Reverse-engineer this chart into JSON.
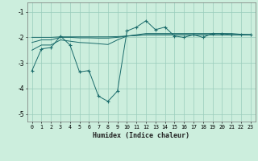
{
  "xlabel": "Humidex (Indice chaleur)",
  "xlim": [
    -0.5,
    23.5
  ],
  "ylim": [
    -5.3,
    -0.65
  ],
  "yticks": [
    -5,
    -4,
    -3,
    -2,
    -1
  ],
  "xticks": [
    0,
    1,
    2,
    3,
    4,
    5,
    6,
    7,
    8,
    9,
    10,
    11,
    12,
    13,
    14,
    15,
    16,
    17,
    18,
    19,
    20,
    21,
    22,
    23
  ],
  "bg_color": "#cceedd",
  "grid_color": "#99ccbb",
  "line_color": "#1a6b6b",
  "series_zigzag": {
    "x": [
      0,
      1,
      2,
      3,
      4,
      5,
      6,
      7,
      8,
      9,
      10,
      11,
      12,
      13,
      14,
      15,
      16,
      17,
      18,
      19,
      20,
      21,
      22,
      23
    ],
    "y": [
      -3.3,
      -2.45,
      -2.4,
      -1.95,
      -2.3,
      -3.35,
      -3.3,
      -4.3,
      -4.5,
      -4.1,
      -1.75,
      -1.6,
      -1.35,
      -1.7,
      -1.6,
      -1.95,
      -2.0,
      -1.9,
      -2.0,
      -1.85,
      -1.85,
      -1.9,
      -1.9,
      -1.9
    ]
  },
  "series_smooth1": {
    "x": [
      0,
      1,
      2,
      3,
      4,
      5,
      6,
      7,
      8,
      9,
      10,
      11,
      12,
      13,
      14,
      15,
      16,
      17,
      18,
      19,
      20,
      21,
      22,
      23
    ],
    "y": [
      -2.5,
      -2.3,
      -2.3,
      -2.1,
      -2.15,
      -2.2,
      -2.22,
      -2.25,
      -2.28,
      -2.1,
      -1.95,
      -1.9,
      -1.85,
      -1.85,
      -1.85,
      -1.85,
      -1.85,
      -1.85,
      -1.85,
      -1.85,
      -1.85,
      -1.85,
      -1.88,
      -1.9
    ]
  },
  "series_smooth2": {
    "x": [
      0,
      1,
      2,
      3,
      4,
      5,
      6,
      7,
      8,
      9,
      10,
      11,
      12,
      13,
      14,
      15,
      16,
      17,
      18,
      19,
      20,
      21,
      22,
      23
    ],
    "y": [
      -2.2,
      -2.1,
      -2.1,
      -2.0,
      -2.0,
      -2.02,
      -2.02,
      -2.03,
      -2.03,
      -2.0,
      -1.95,
      -1.92,
      -1.9,
      -1.9,
      -1.9,
      -1.9,
      -1.9,
      -1.9,
      -1.9,
      -1.9,
      -1.9,
      -1.9,
      -1.9,
      -1.9
    ]
  },
  "series_flat": {
    "x": [
      0,
      1,
      2,
      3,
      4,
      5,
      6,
      7,
      8,
      9,
      10,
      11,
      12,
      13,
      14,
      15,
      16,
      17,
      18,
      19,
      20,
      21,
      22,
      23
    ],
    "y": [
      -2.0,
      -2.0,
      -2.0,
      -1.98,
      -1.98,
      -1.98,
      -1.98,
      -1.98,
      -1.98,
      -1.97,
      -1.95,
      -1.93,
      -1.9,
      -1.9,
      -1.9,
      -1.9,
      -1.9,
      -1.9,
      -1.9,
      -1.9,
      -1.9,
      -1.9,
      -1.9,
      -1.9
    ]
  }
}
